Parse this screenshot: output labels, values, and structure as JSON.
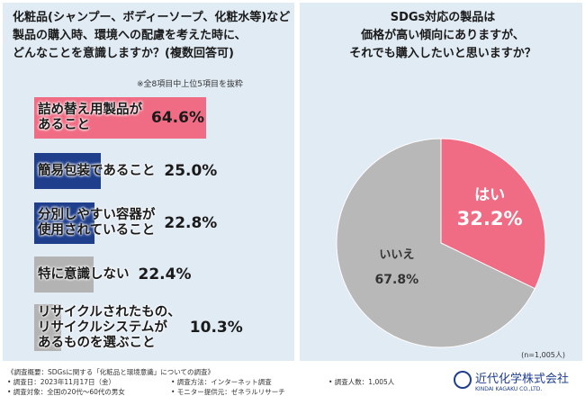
{
  "chart_data": [
    {
      "type": "hbar",
      "title": [
        "化粧品(シャンプー、ボディーソープ、化粧水等)など",
        "製品の購入時、環境への配慮を考えた時に、",
        "どんなことを意識しますか？(複数回答可)"
      ],
      "subtitle": "※全8項目中上位5項目を抜粋",
      "categories": [
        "詰め替え用製品が\nあること",
        "簡易包装であること",
        "分別しやすい容器が\n使用されていること",
        "特に意識しない",
        "リサイクルされたもの、\nリサイクルシステムが\nあるものを選ぶこと"
      ],
      "values": [
        64.6,
        25.0,
        22.8,
        22.4,
        10.3
      ],
      "value_labels": [
        "64.6%",
        "25.0%",
        "22.8%",
        "22.4%",
        "10.3%"
      ],
      "colors": [
        "#f06c84",
        "#1f3f8c",
        "#1f3f8c",
        "#b3b3b3",
        "#b3b3b3"
      ]
    },
    {
      "type": "pie",
      "title": [
        "SDGs対応の製品は",
        "価格が高い傾向にありますが、",
        "それでも購入したいと思いますか？"
      ],
      "categories": [
        "はい",
        "いいえ"
      ],
      "values": [
        32.2,
        67.8
      ],
      "value_labels": [
        "32.2%",
        "67.8%"
      ],
      "colors": [
        "#f06c84",
        "#b8b8b8"
      ],
      "note": "(n=1,005人)"
    }
  ],
  "footer": {
    "lines": [
      "《調査概要：SDGsに関する「化粧品と環境意識」についての調査》",
      "• 調査日：2023年11月17日（金）",
      "• 調査方法：インターネット調査",
      "• 調査人数：1,005人",
      "• 調査対象：全国の20代～60代の男女",
      "• モニター提供元：ゼネラルリサーチ"
    ],
    "company": "近代化学株式会社",
    "company_en": "KINDAI KAGAKU CO.,LTD."
  }
}
